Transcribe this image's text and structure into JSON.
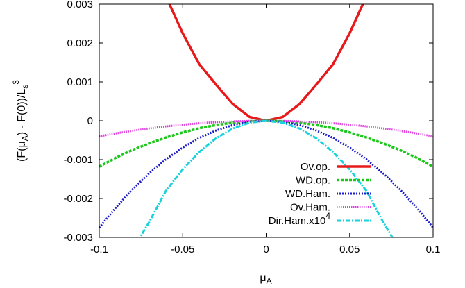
{
  "chart_data": {
    "type": "line",
    "title": "",
    "xlabel": "μ",
    "xlabel_sub": "A",
    "ylabel_parts": [
      "(F(μ",
      "A",
      ") - F(0))/L",
      "s",
      "3"
    ],
    "xlim": [
      -0.1,
      0.1
    ],
    "ylim": [
      -0.003,
      0.003
    ],
    "xticks": [
      -0.1,
      -0.05,
      0,
      0.05,
      0.1
    ],
    "xtick_labels": [
      "-0.1",
      "-0.05",
      "0",
      "0.05",
      "0.1"
    ],
    "yticks": [
      -0.003,
      -0.002,
      -0.001,
      0,
      0.001,
      0.002,
      0.003
    ],
    "ytick_labels": [
      "-0.003",
      "-0.002",
      "-0.001",
      "0",
      "0.001",
      "0.002",
      "0.003"
    ],
    "grid": false,
    "legend_position": "bottom-right",
    "series": [
      {
        "name": "Ov.op.",
        "color": "#e8191a",
        "style": "solid",
        "x": [
          -0.06,
          -0.05,
          -0.04,
          -0.03,
          -0.02,
          -0.01,
          0,
          0.01,
          0.02,
          0.03,
          0.04,
          0.05,
          0.06
        ],
        "y": [
          0.0032,
          0.00225,
          0.00145,
          0.00093,
          0.00043,
          0.0001,
          0,
          0.0001,
          0.00043,
          0.00093,
          0.00145,
          0.00225,
          0.0032
        ]
      },
      {
        "name": "WD.op.",
        "color": "#19c819",
        "style": "dashed",
        "x": [
          -0.1,
          -0.09,
          -0.08,
          -0.07,
          -0.06,
          -0.05,
          -0.04,
          -0.03,
          -0.02,
          -0.01,
          0,
          0.01,
          0.02,
          0.03,
          0.04,
          0.05,
          0.06,
          0.07,
          0.08,
          0.09,
          0.1
        ],
        "y": [
          -0.00118,
          -0.00095,
          -0.00075,
          -0.00058,
          -0.00043,
          -0.0003,
          -0.00019,
          -0.00011,
          -5e-05,
          -1.2e-05,
          0,
          -1.2e-05,
          -5e-05,
          -0.00011,
          -0.00019,
          -0.0003,
          -0.00043,
          -0.00058,
          -0.00075,
          -0.00095,
          -0.00118
        ]
      },
      {
        "name": "WD.Ham.",
        "color": "#1a1ac8",
        "style": "dotted",
        "x": [
          -0.1,
          -0.09,
          -0.08,
          -0.07,
          -0.06,
          -0.05,
          -0.04,
          -0.03,
          -0.02,
          -0.01,
          0,
          0.01,
          0.02,
          0.03,
          0.04,
          0.05,
          0.06,
          0.07,
          0.08,
          0.09,
          0.1
        ],
        "y": [
          -0.00275,
          -0.00223,
          -0.00176,
          -0.00135,
          -0.00099,
          -0.00069,
          -0.00044,
          -0.00025,
          -0.00011,
          -2.8e-05,
          0,
          -2.8e-05,
          -0.00011,
          -0.00025,
          -0.00044,
          -0.00069,
          -0.00099,
          -0.00135,
          -0.00176,
          -0.00223,
          -0.00275
        ]
      },
      {
        "name": "Ov.Ham.",
        "color": "#e040e0",
        "style": "dotted-dense",
        "x": [
          -0.1,
          -0.09,
          -0.08,
          -0.07,
          -0.06,
          -0.05,
          -0.04,
          -0.03,
          -0.02,
          -0.01,
          0,
          0.01,
          0.02,
          0.03,
          0.04,
          0.05,
          0.06,
          0.07,
          0.08,
          0.09,
          0.1
        ],
        "y": [
          -0.0004,
          -0.000324,
          -0.000256,
          -0.000196,
          -0.000144,
          -0.0001,
          -6.4e-05,
          -3.6e-05,
          -1.6e-05,
          -4e-06,
          0,
          -4e-06,
          -1.6e-05,
          -3.6e-05,
          -6.4e-05,
          -0.0001,
          -0.000144,
          -0.000196,
          -0.000256,
          -0.000324,
          -0.0004
        ]
      },
      {
        "name": "Dir.Ham.x10",
        "name_sup": "4",
        "color": "#19d2dc",
        "style": "dash-dot",
        "x": [
          -0.077,
          -0.07,
          -0.06,
          -0.05,
          -0.04,
          -0.03,
          -0.02,
          -0.01,
          0,
          0.01,
          0.02,
          0.03,
          0.04,
          0.05,
          0.06,
          0.07,
          0.077
        ],
        "y": [
          -0.0031,
          -0.0026,
          -0.0018,
          -0.00125,
          -0.0008,
          -0.00045,
          -0.0002,
          -5e-05,
          0,
          -5e-05,
          -0.0002,
          -0.00045,
          -0.0008,
          -0.00125,
          -0.0018,
          -0.0026,
          -0.0031
        ]
      }
    ]
  }
}
